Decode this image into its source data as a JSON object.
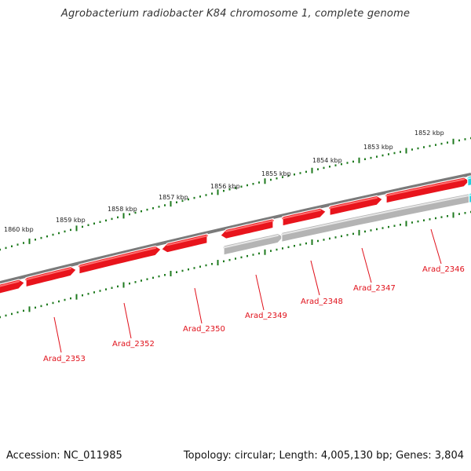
{
  "title": "Agrobacterium radiobacter K84 chromosome 1, complete genome",
  "footer": {
    "accession": "Accession: NC_011985",
    "summary": "Topology: circular; Length: 4,005,130 bp; Genes: 3,804"
  },
  "colors": {
    "forward_gene": "#e8141c",
    "reverse_gene_fill": "#ee2020",
    "pseudo_gene": "#b4b4b4",
    "other_gene": "#20d0e0",
    "backbone": "#7a7a7a",
    "tick": "#1e7a1e",
    "label": "#e0101a"
  },
  "scale_ticks": [
    {
      "label": "1852 kbp"
    },
    {
      "label": "1853 kbp"
    },
    {
      "label": "1854 kbp"
    },
    {
      "label": "1855 kbp"
    },
    {
      "label": "1856 kbp"
    },
    {
      "label": "1857 kbp"
    },
    {
      "label": "1858 kbp"
    },
    {
      "label": "1859 kbp"
    },
    {
      "label": "1860 kbp"
    }
  ],
  "gene_labels": [
    {
      "label": "Arad_2346"
    },
    {
      "label": "Arad_2347"
    },
    {
      "label": "Arad_2348"
    },
    {
      "label": "Arad_2349"
    },
    {
      "label": "Arad_2350"
    },
    {
      "label": "Arad_2352"
    },
    {
      "label": "Arad_2353"
    }
  ]
}
